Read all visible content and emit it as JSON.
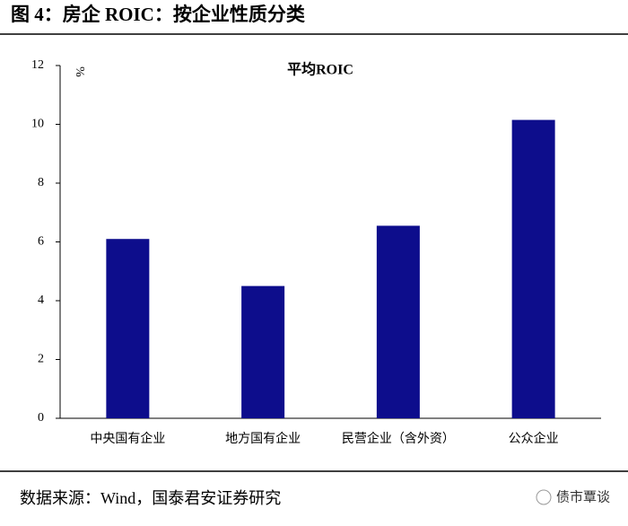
{
  "header": {
    "title": "图 4：房企 ROIC：按企业性质分类"
  },
  "chart_data": {
    "type": "bar",
    "title": "平均ROIC",
    "y_label": "%",
    "categories": [
      "中央国有企业",
      "地方国有企业",
      "民营企业（含外资）",
      "公众企业"
    ],
    "values": [
      6.1,
      4.5,
      6.55,
      10.15
    ],
    "color": "#0d0d8c",
    "ylim": [
      0,
      12
    ],
    "yticks": [
      0,
      2,
      4,
      6,
      8,
      10,
      12
    ],
    "grid": false
  },
  "footer": {
    "source": "数据来源：Wind，国泰君安证券研究",
    "watermark": "债市覃谈"
  }
}
